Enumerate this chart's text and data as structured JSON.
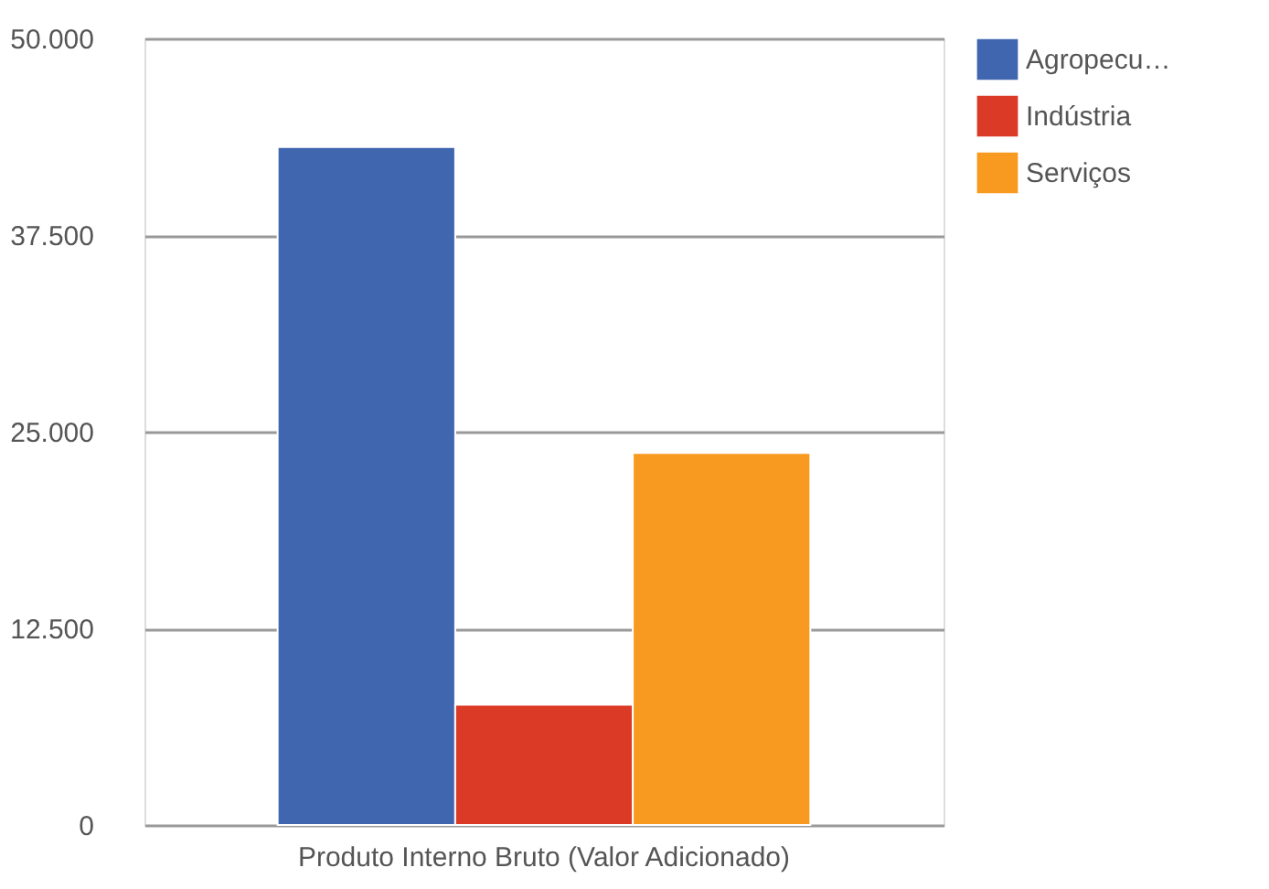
{
  "chart_data": {
    "type": "bar",
    "categories": [
      "Produto Interno Bruto (Valor Adicionado)"
    ],
    "series": [
      {
        "name": "Agropecu…",
        "color": "#4066b0",
        "values": [
          43100
        ]
      },
      {
        "name": "Indústria",
        "color": "#db3b26",
        "values": [
          7650
        ]
      },
      {
        "name": "Serviços",
        "color": "#f89a20",
        "values": [
          23650
        ]
      }
    ],
    "ylim": [
      0,
      50000
    ],
    "yticks": [
      {
        "value": 0,
        "label": "0"
      },
      {
        "value": 12500,
        "label": "12.500"
      },
      {
        "value": 25000,
        "label": "25.000"
      },
      {
        "value": 37500,
        "label": "37.500"
      },
      {
        "value": 50000,
        "label": "50.000"
      }
    ],
    "grid": "y",
    "legend": "top right"
  }
}
